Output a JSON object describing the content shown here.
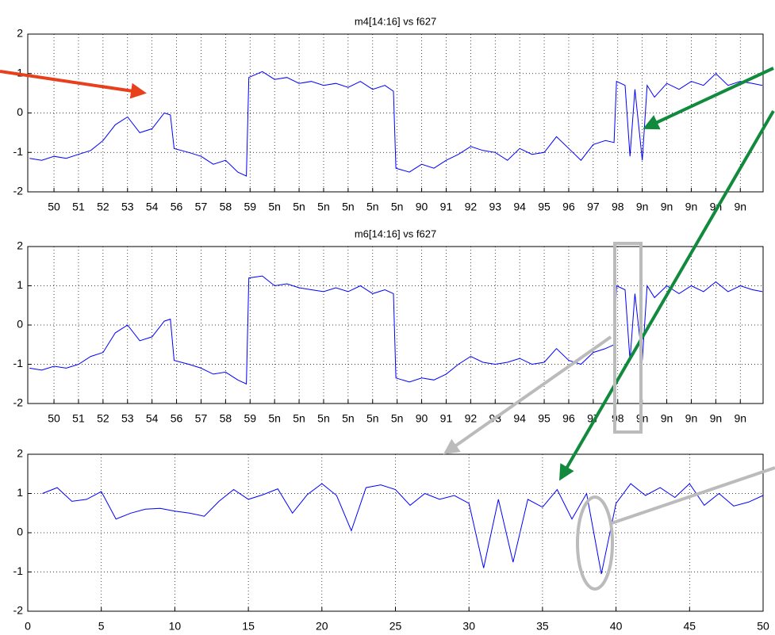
{
  "chart_data": [
    {
      "type": "line",
      "title": "m4[14:16] vs f627",
      "color": "#0000ff",
      "grid": true,
      "xlim": [
        -1.07,
        28.93
      ],
      "ylim": [
        -2,
        2
      ],
      "yticks": [
        -2,
        -1,
        0,
        1,
        2
      ],
      "xticks": [
        {
          "value": 0,
          "label": "50"
        },
        {
          "value": 1,
          "label": "51"
        },
        {
          "value": 2,
          "label": "52"
        },
        {
          "value": 3,
          "label": "53"
        },
        {
          "value": 4,
          "label": "54"
        },
        {
          "value": 5,
          "label": "56"
        },
        {
          "value": 6,
          "label": "57"
        },
        {
          "value": 7,
          "label": "58"
        },
        {
          "value": 8,
          "label": "59"
        },
        {
          "value": 9,
          "label": "5n"
        },
        {
          "value": 10,
          "label": "5n"
        },
        {
          "value": 11,
          "label": "5n"
        },
        {
          "value": 12,
          "label": "5n"
        },
        {
          "value": 13,
          "label": "5n"
        },
        {
          "value": 14,
          "label": "5n"
        },
        {
          "value": 15,
          "label": "90"
        },
        {
          "value": 16,
          "label": "91"
        },
        {
          "value": 17,
          "label": "92"
        },
        {
          "value": 18,
          "label": "93"
        },
        {
          "value": 19,
          "label": "94"
        },
        {
          "value": 20,
          "label": "95"
        },
        {
          "value": 21,
          "label": "96"
        },
        {
          "value": 22,
          "label": "97"
        },
        {
          "value": 23,
          "label": "98"
        },
        {
          "value": 24,
          "label": "9n"
        },
        {
          "value": 25,
          "label": "9n"
        },
        {
          "value": 26,
          "label": "9n"
        },
        {
          "value": 27,
          "label": "9n"
        },
        {
          "value": 28,
          "label": "9n"
        }
      ],
      "x": [
        -1,
        -0.5,
        0,
        0.5,
        1,
        1.5,
        2,
        2.5,
        3,
        3.5,
        4,
        4.5,
        4.75,
        4.9,
        5.5,
        6,
        6.5,
        7,
        7.5,
        7.85,
        7.95,
        8.5,
        9,
        9.5,
        10,
        10.5,
        11,
        11.5,
        12,
        12.5,
        13,
        13.5,
        13.85,
        13.95,
        14.5,
        15,
        15.5,
        16,
        16.5,
        17,
        17.5,
        18,
        18.5,
        19,
        19.5,
        20,
        20.5,
        21,
        21.5,
        22,
        22.5,
        22.85,
        22.95,
        23.3,
        23.5,
        23.7,
        24,
        24.2,
        24.5,
        25,
        25.5,
        26,
        26.5,
        27,
        27.5,
        28,
        28.5,
        28.9
      ],
      "values": [
        -1.15,
        -1.2,
        -1.1,
        -1.15,
        -1.05,
        -0.95,
        -0.7,
        -0.3,
        -0.1,
        -0.5,
        -0.4,
        0.0,
        -0.05,
        -0.9,
        -1.0,
        -1.1,
        -1.3,
        -1.2,
        -1.5,
        -1.6,
        0.9,
        1.05,
        0.85,
        0.9,
        0.75,
        0.8,
        0.7,
        0.75,
        0.65,
        0.8,
        0.6,
        0.7,
        0.55,
        -1.4,
        -1.5,
        -1.3,
        -1.4,
        -1.2,
        -1.05,
        -0.85,
        -0.95,
        -1.0,
        -1.2,
        -0.9,
        -1.05,
        -1.0,
        -0.6,
        -0.9,
        -1.2,
        -0.8,
        -0.7,
        -0.75,
        0.8,
        0.7,
        -1.1,
        0.6,
        -1.2,
        0.7,
        0.4,
        0.75,
        0.6,
        0.8,
        0.7,
        1.0,
        0.7,
        0.8,
        0.75,
        0.7
      ]
    },
    {
      "type": "line",
      "title": "m6[14:16] vs f627",
      "color": "#0000ff",
      "grid": true,
      "xlim": [
        -1.07,
        28.93
      ],
      "ylim": [
        -2,
        2
      ],
      "yticks": [
        -2,
        -1,
        0,
        1,
        2
      ],
      "xticks": [
        {
          "value": 0,
          "label": "50"
        },
        {
          "value": 1,
          "label": "51"
        },
        {
          "value": 2,
          "label": "52"
        },
        {
          "value": 3,
          "label": "53"
        },
        {
          "value": 4,
          "label": "54"
        },
        {
          "value": 5,
          "label": "56"
        },
        {
          "value": 6,
          "label": "57"
        },
        {
          "value": 7,
          "label": "58"
        },
        {
          "value": 8,
          "label": "59"
        },
        {
          "value": 9,
          "label": "5n"
        },
        {
          "value": 10,
          "label": "5n"
        },
        {
          "value": 11,
          "label": "5n"
        },
        {
          "value": 12,
          "label": "5n"
        },
        {
          "value": 13,
          "label": "5n"
        },
        {
          "value": 14,
          "label": "5n"
        },
        {
          "value": 15,
          "label": "90"
        },
        {
          "value": 16,
          "label": "91"
        },
        {
          "value": 17,
          "label": "92"
        },
        {
          "value": 18,
          "label": "93"
        },
        {
          "value": 19,
          "label": "94"
        },
        {
          "value": 20,
          "label": "95"
        },
        {
          "value": 21,
          "label": "96"
        },
        {
          "value": 22,
          "label": "97"
        },
        {
          "value": 23,
          "label": "98"
        },
        {
          "value": 24,
          "label": "9n"
        },
        {
          "value": 25,
          "label": "9n"
        },
        {
          "value": 26,
          "label": "9n"
        },
        {
          "value": 27,
          "label": "9n"
        },
        {
          "value": 28,
          "label": "9n"
        }
      ],
      "x": [
        -1,
        -0.5,
        0,
        0.5,
        1,
        1.5,
        2,
        2.5,
        3,
        3.5,
        4,
        4.5,
        4.75,
        4.9,
        5.5,
        6,
        6.5,
        7,
        7.5,
        7.85,
        7.95,
        8.5,
        9,
        9.5,
        10,
        10.5,
        11,
        11.5,
        12,
        12.5,
        13,
        13.5,
        13.85,
        13.95,
        14.5,
        15,
        15.5,
        16,
        16.5,
        17,
        17.5,
        18,
        18.5,
        19,
        19.5,
        20,
        20.5,
        21,
        21.5,
        22,
        22.5,
        22.85,
        22.95,
        23.3,
        23.5,
        23.7,
        24,
        24.2,
        24.5,
        25,
        25.5,
        26,
        26.5,
        27,
        27.5,
        28,
        28.5,
        28.9
      ],
      "values": [
        -1.1,
        -1.15,
        -1.05,
        -1.1,
        -1.0,
        -0.8,
        -0.7,
        -0.2,
        0.0,
        -0.4,
        -0.3,
        0.1,
        0.15,
        -0.9,
        -1.0,
        -1.1,
        -1.25,
        -1.2,
        -1.4,
        -1.5,
        1.2,
        1.25,
        1.0,
        1.05,
        0.95,
        0.9,
        0.85,
        0.95,
        0.85,
        1.0,
        0.8,
        0.9,
        0.8,
        -1.35,
        -1.45,
        -1.35,
        -1.4,
        -1.25,
        -1.0,
        -0.8,
        -0.95,
        -1.0,
        -0.95,
        -0.85,
        -1.0,
        -0.95,
        -0.6,
        -0.9,
        -1.0,
        -0.7,
        -0.6,
        -0.5,
        1.0,
        0.9,
        -0.9,
        0.8,
        -0.9,
        1.0,
        0.7,
        1.0,
        0.8,
        1.0,
        0.85,
        1.1,
        0.85,
        1.0,
        0.9,
        0.85
      ]
    },
    {
      "type": "line",
      "color": "#0000ff",
      "grid": true,
      "xlim": [
        0,
        50
      ],
      "ylim": [
        -2,
        2
      ],
      "yticks": [
        -2,
        -1,
        0,
        1,
        2
      ],
      "xticks": [
        0,
        5,
        10,
        15,
        20,
        25,
        30,
        35,
        40,
        45,
        50
      ],
      "x": [
        1,
        2,
        3,
        4,
        5,
        6,
        7,
        8,
        9,
        10,
        11,
        12,
        13,
        14,
        15,
        16,
        17,
        18,
        19,
        20,
        21,
        22,
        23,
        24,
        25,
        26,
        27,
        28,
        29,
        30,
        31,
        32,
        33,
        34,
        35,
        36,
        37,
        38,
        39,
        40,
        41,
        42,
        43,
        44,
        45,
        46,
        47,
        48,
        49,
        50
      ],
      "values": [
        1.0,
        1.15,
        0.8,
        0.85,
        1.05,
        0.35,
        0.5,
        0.6,
        0.62,
        0.55,
        0.5,
        0.42,
        0.8,
        1.1,
        0.85,
        0.97,
        1.12,
        0.5,
        0.97,
        1.25,
        0.95,
        0.05,
        1.15,
        1.22,
        1.1,
        0.7,
        1.0,
        0.85,
        0.95,
        0.75,
        -0.9,
        0.85,
        -0.75,
        0.85,
        0.65,
        1.1,
        0.35,
        1.0,
        -1.05,
        0.75,
        1.25,
        0.95,
        1.15,
        0.9,
        1.25,
        0.7,
        1.0,
        0.68,
        0.78,
        0.95
      ]
    }
  ]
}
